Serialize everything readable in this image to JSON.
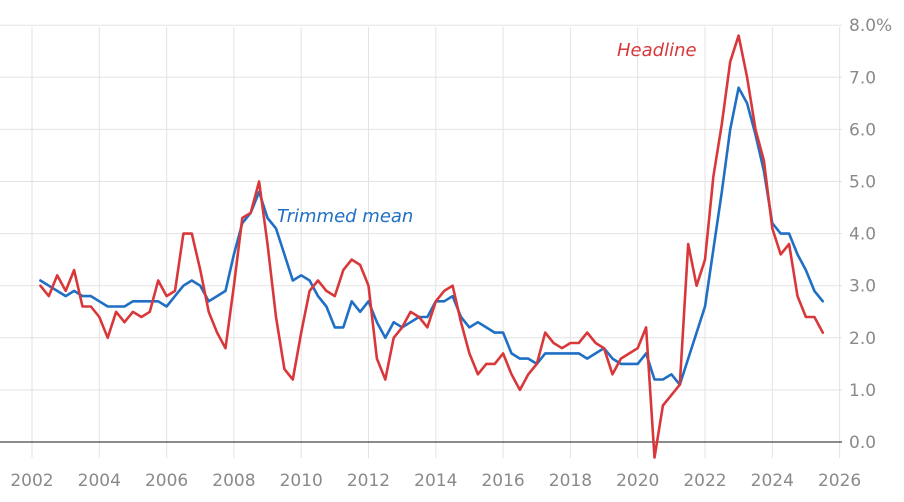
{
  "chart_data": {
    "type": "line",
    "title": "",
    "xlabel": "",
    "ylabel": "",
    "xlim": [
      2002,
      2026
    ],
    "ylim": [
      -0.3,
      8.0
    ],
    "x_ticks": [
      "2002",
      "2004",
      "2006",
      "2008",
      "2010",
      "2012",
      "2014",
      "2016",
      "2018",
      "2020",
      "2022",
      "2024",
      "2026"
    ],
    "y_ticks": [
      "0.0",
      "1.0",
      "2.0",
      "3.0",
      "4.0",
      "5.0",
      "6.0",
      "7.0",
      "8.0%"
    ],
    "grid": true,
    "legend": "inline labels",
    "series": [
      {
        "name": "Headline",
        "color": "#d9383a",
        "x": [
          2002.25,
          2002.5,
          2002.75,
          2003,
          2003.25,
          2003.5,
          2003.75,
          2004,
          2004.25,
          2004.5,
          2004.75,
          2005,
          2005.25,
          2005.5,
          2005.75,
          2006,
          2006.25,
          2006.5,
          2006.75,
          2007,
          2007.25,
          2007.5,
          2007.75,
          2008,
          2008.25,
          2008.5,
          2008.75,
          2009,
          2009.25,
          2009.5,
          2009.75,
          2010,
          2010.25,
          2010.5,
          2010.75,
          2011,
          2011.25,
          2011.5,
          2011.75,
          2012,
          2012.25,
          2012.5,
          2012.75,
          2013,
          2013.25,
          2013.5,
          2013.75,
          2014,
          2014.25,
          2014.5,
          2014.75,
          2015,
          2015.25,
          2015.5,
          2015.75,
          2016,
          2016.25,
          2016.5,
          2016.75,
          2017,
          2017.25,
          2017.5,
          2017.75,
          2018,
          2018.25,
          2018.5,
          2018.75,
          2019,
          2019.25,
          2019.5,
          2019.75,
          2020,
          2020.25,
          2020.5,
          2020.75,
          2021,
          2021.25,
          2021.5,
          2021.75,
          2022,
          2022.25,
          2022.5,
          2022.75,
          2023,
          2023.25,
          2023.5,
          2023.75,
          2024,
          2024.25,
          2024.5,
          2024.75,
          2025,
          2025.25,
          2025.5
        ],
        "values": [
          3.0,
          2.8,
          3.2,
          2.9,
          3.3,
          2.6,
          2.6,
          2.4,
          2.0,
          2.5,
          2.3,
          2.5,
          2.4,
          2.5,
          3.1,
          2.8,
          2.9,
          4.0,
          4.0,
          3.3,
          2.5,
          2.1,
          1.8,
          3.0,
          4.3,
          4.4,
          5.0,
          3.8,
          2.4,
          1.4,
          1.2,
          2.1,
          2.9,
          3.1,
          2.9,
          2.8,
          3.3,
          3.5,
          3.4,
          3.0,
          1.6,
          1.2,
          2.0,
          2.2,
          2.5,
          2.4,
          2.2,
          2.7,
          2.9,
          3.0,
          2.3,
          1.7,
          1.3,
          1.5,
          1.5,
          1.7,
          1.3,
          1.0,
          1.3,
          1.5,
          2.1,
          1.9,
          1.8,
          1.9,
          1.9,
          2.1,
          1.9,
          1.8,
          1.3,
          1.6,
          1.7,
          1.8,
          2.2,
          -0.3,
          0.7,
          0.9,
          1.1,
          3.8,
          3.0,
          3.5,
          5.1,
          6.1,
          7.3,
          7.8,
          7.0,
          6.0,
          5.4,
          4.1,
          3.6,
          3.8,
          2.8,
          2.4,
          2.4,
          2.1
        ]
      },
      {
        "name": "Trimmed mean",
        "color": "#1f6fc4",
        "x": [
          2002.25,
          2002.5,
          2002.75,
          2003,
          2003.25,
          2003.5,
          2003.75,
          2004,
          2004.25,
          2004.5,
          2004.75,
          2005,
          2005.25,
          2005.5,
          2005.75,
          2006,
          2006.25,
          2006.5,
          2006.75,
          2007,
          2007.25,
          2007.5,
          2007.75,
          2008,
          2008.25,
          2008.5,
          2008.75,
          2009,
          2009.25,
          2009.5,
          2009.75,
          2010,
          2010.25,
          2010.5,
          2010.75,
          2011,
          2011.25,
          2011.5,
          2011.75,
          2012,
          2012.25,
          2012.5,
          2012.75,
          2013,
          2013.25,
          2013.5,
          2013.75,
          2014,
          2014.25,
          2014.5,
          2014.75,
          2015,
          2015.25,
          2015.5,
          2015.75,
          2016,
          2016.25,
          2016.5,
          2016.75,
          2017,
          2017.25,
          2017.5,
          2017.75,
          2018,
          2018.25,
          2018.5,
          2018.75,
          2019,
          2019.25,
          2019.5,
          2019.75,
          2020,
          2020.25,
          2020.5,
          2020.75,
          2021,
          2021.25,
          2021.5,
          2021.75,
          2022,
          2022.25,
          2022.5,
          2022.75,
          2023,
          2023.25,
          2023.5,
          2023.75,
          2024,
          2024.25,
          2024.5,
          2024.75,
          2025,
          2025.25,
          2025.5
        ],
        "values": [
          3.1,
          3.0,
          2.9,
          2.8,
          2.9,
          2.8,
          2.8,
          2.7,
          2.6,
          2.6,
          2.6,
          2.7,
          2.7,
          2.7,
          2.7,
          2.6,
          2.8,
          3.0,
          3.1,
          3.0,
          2.7,
          2.8,
          2.9,
          3.6,
          4.2,
          4.4,
          4.8,
          4.3,
          4.1,
          3.6,
          3.1,
          3.2,
          3.1,
          2.8,
          2.6,
          2.2,
          2.2,
          2.7,
          2.5,
          2.7,
          2.3,
          2.0,
          2.3,
          2.2,
          2.3,
          2.4,
          2.4,
          2.7,
          2.7,
          2.8,
          2.4,
          2.2,
          2.3,
          2.2,
          2.1,
          2.1,
          1.7,
          1.6,
          1.6,
          1.5,
          1.7,
          1.7,
          1.7,
          1.7,
          1.7,
          1.6,
          1.7,
          1.8,
          1.6,
          1.5,
          1.5,
          1.5,
          1.7,
          1.2,
          1.2,
          1.3,
          1.1,
          1.6,
          2.1,
          2.6,
          3.7,
          4.8,
          6.0,
          6.8,
          6.5,
          5.9,
          5.2,
          4.2,
          4.0,
          4.0,
          3.6,
          3.3,
          2.9,
          2.7
        ]
      }
    ]
  }
}
